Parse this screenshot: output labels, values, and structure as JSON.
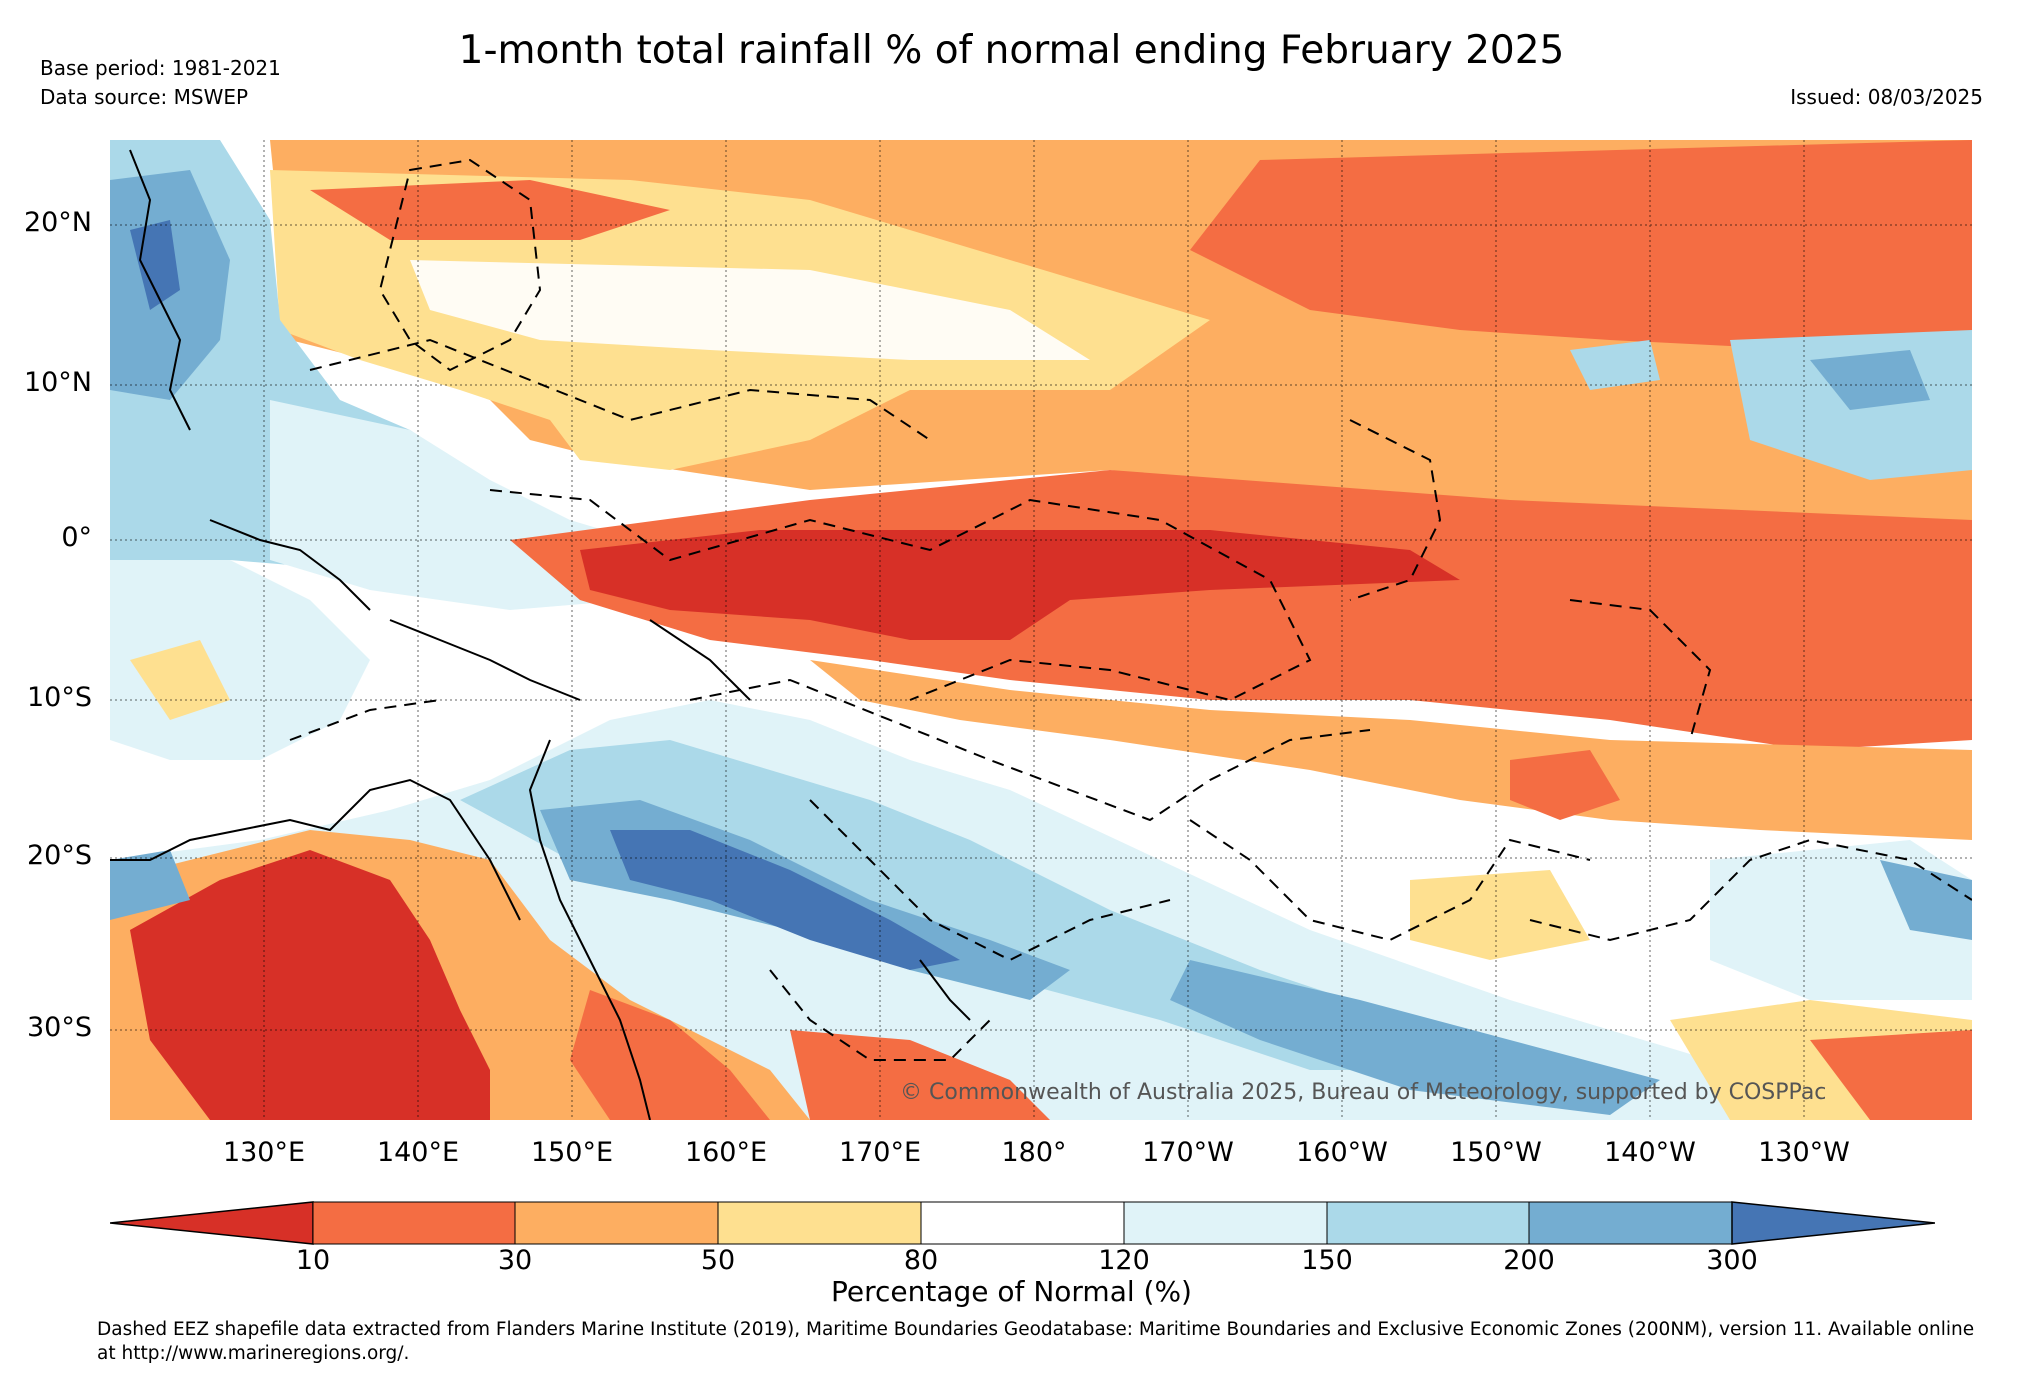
{
  "header": {
    "title": "1-month total rainfall % of normal ending February 2025",
    "base_period": "Base period: 1981-2021",
    "data_source": "Data source: MSWEP",
    "issued": "Issued: 08/03/2025"
  },
  "map": {
    "region": "Western and South Pacific",
    "lon_ticks": [
      "130°E",
      "140°E",
      "150°E",
      "160°E",
      "170°E",
      "180°",
      "170°W",
      "160°W",
      "150°W",
      "140°W",
      "130°W"
    ],
    "lat_ticks": [
      "20°N",
      "10°N",
      "0°",
      "10°S",
      "20°S",
      "30°S"
    ],
    "copyright": "© Commonwealth of Australia 2025, Bureau of Meteorology, supported by COSPPac",
    "colors": {
      "very_dry": "#d73027",
      "dry": "#f46d43",
      "mod_dry": "#fdae61",
      "slight_dry": "#fee090",
      "normal": "#ffffff",
      "slight_wet": "#e0f3f8",
      "mod_wet": "#abd9e9",
      "wet": "#74add1",
      "very_wet": "#4575b4"
    }
  },
  "colorbar": {
    "label": "Percentage of Normal (%)",
    "ticks": [
      "10",
      "30",
      "50",
      "80",
      "120",
      "150",
      "200",
      "300"
    ],
    "colors": [
      "#d73027",
      "#f46d43",
      "#fdae61",
      "#fee090",
      "#ffffff",
      "#e0f3f8",
      "#abd9e9",
      "#74add1",
      "#4575b4"
    ]
  },
  "footer": {
    "note": "Dashed EEZ shapefile data extracted from Flanders Marine Institute (2019), Maritime Boundaries Geodatabase: Maritime Boundaries and Exclusive Economic Zones (200NM), version 11. Available online at http://www.marineregions.org/."
  }
}
